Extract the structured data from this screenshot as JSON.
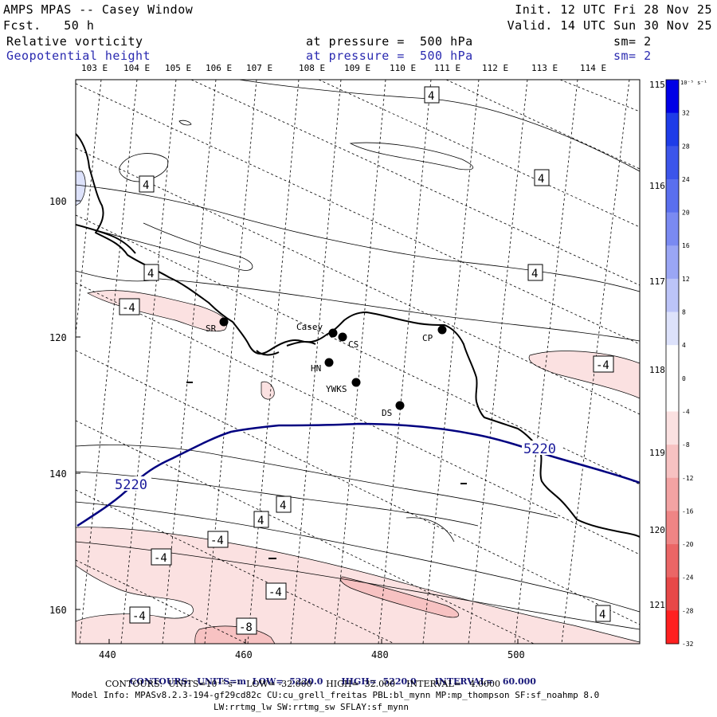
{
  "header": {
    "title": "AMPS MPAS -- Casey Window",
    "forecast": "Fcst.   50 h",
    "init": "Init. 12 UTC Fri 28 Nov 25",
    "valid": "Valid. 14 UTC Sun 30 Nov 25",
    "fields": [
      {
        "name": "Relative vorticity",
        "pressure": "at pressure =  500 hPa",
        "sm": "sm= 2"
      },
      {
        "name": "Geopotential height",
        "pressure": "at pressure =  500 hPa",
        "sm": "sm= 2"
      }
    ]
  },
  "map": {
    "top_lon_labels": [
      "103 E",
      "104 E",
      "105 E",
      "106 E",
      "107 E",
      "108 E",
      "109 E",
      "110 E",
      "111 E",
      "112 E",
      "113 E",
      "114 E"
    ],
    "right_lon_labels": [
      "115 E",
      "116 E",
      "117 E",
      "118 E",
      "119 E",
      "120 E",
      "121 E"
    ],
    "y_ticks": [
      "100",
      "120",
      "140",
      "160"
    ],
    "x_ticks": [
      "440",
      "460",
      "480",
      "500"
    ],
    "stations": [
      {
        "name": "Casey"
      },
      {
        "name": "CS"
      },
      {
        "name": "CP"
      },
      {
        "name": "SR"
      },
      {
        "name": "HN"
      },
      {
        "name": "YWKS"
      },
      {
        "name": "DS"
      }
    ],
    "height_contour_label": "5220",
    "vorticity_labels": [
      "4",
      "-4",
      "-8"
    ]
  },
  "colorbar": {
    "unit": "10⁻⁵ s⁻¹",
    "levels": [
      "32",
      "28",
      "24",
      "20",
      "16",
      "12",
      "8",
      "4",
      "0",
      "-4",
      "-8",
      "-12",
      "-16",
      "-20",
      "-24",
      "-28",
      "-32"
    ],
    "colors": [
      "#0000e6",
      "#1e3ce8",
      "#3c55ea",
      "#5a6fee",
      "#7a8af2",
      "#9aa6f5",
      "#bcc4f8",
      "#dde2fb",
      "#ffffff",
      "#ffffff",
      "#fbe1e1",
      "#f7c2c2",
      "#f3a3a3",
      "#ef8585",
      "#eb6666",
      "#e74848",
      "#ff2020"
    ]
  },
  "footer": {
    "height_contours": {
      "label": "CONTOURS:",
      "units": "UNITS=m",
      "low": "LOW=  5220.0",
      "high": "HIGH=  5220.0",
      "interval": "INTERVAL=   60.000"
    },
    "vort_contours": "CONTOURS:  UNITS=10⁻⁵ s⁻¹  LOW= -32.000     HIGH=  32.000    INTERVAL=   4.0000",
    "model_info_line1": "Model Info: MPASv8.2.3-194-gf29cd82c CU:cu_grell_freitas PBL:bl_mynn MP:mp_thompson SF:sf_noahmp 8.0",
    "model_info_line2": "LW:rrtmg_lw SW:rrtmg_sw SFLAY:sf_mynn"
  }
}
